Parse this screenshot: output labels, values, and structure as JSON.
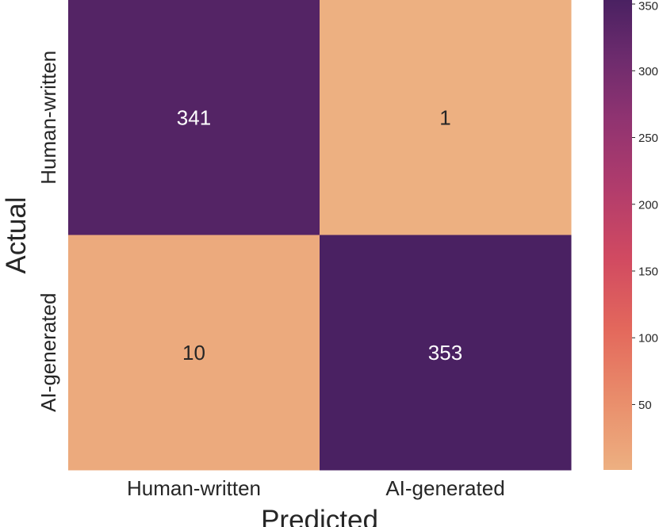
{
  "chart_data": {
    "type": "heatmap",
    "title": "",
    "xlabel": "Predicted",
    "ylabel": "Actual",
    "x_categories": [
      "Human-written",
      "AI-generated"
    ],
    "y_categories": [
      "Human-written",
      "AI-generated"
    ],
    "values": [
      [
        341,
        1
      ],
      [
        10,
        353
      ]
    ],
    "colorbar": {
      "range": [
        1,
        353
      ],
      "ticks": [
        50,
        100,
        150,
        200,
        250,
        300,
        350
      ],
      "colormap": "flare",
      "low_color": "#edb081",
      "high_color": "#4a2162"
    },
    "grid": false,
    "legend": "colorbar-right"
  }
}
